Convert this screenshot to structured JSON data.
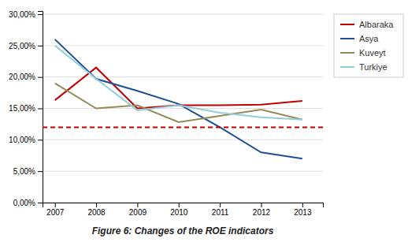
{
  "chart_data": {
    "type": "line",
    "title": "Figure 6: Changes of the ROE indicators",
    "x": [
      2007,
      2008,
      2009,
      2010,
      2011,
      2012,
      2013
    ],
    "series": [
      {
        "name": "Albaraka",
        "color": "#c00000",
        "values": [
          0.163,
          0.215,
          0.15,
          0.155,
          0.155,
          0.156,
          0.162
        ]
      },
      {
        "name": "Asya",
        "color": "#1f5096",
        "values": [
          0.26,
          0.197,
          0.178,
          0.157,
          0.12,
          0.08,
          0.07
        ]
      },
      {
        "name": "Kuveyt",
        "color": "#948a54",
        "values": [
          0.19,
          0.15,
          0.155,
          0.128,
          0.138,
          0.148,
          0.132
        ]
      },
      {
        "name": "Turkiye",
        "color": "#92cddc",
        "values": [
          0.25,
          0.197,
          0.147,
          0.155,
          0.143,
          0.136,
          0.132
        ]
      }
    ],
    "hline": {
      "value": 0.12,
      "color": "#c00000",
      "line_style": "dashed"
    },
    "xlim": [
      2006.7,
      2013.5
    ],
    "xticks": [
      2007,
      2008,
      2009,
      2010,
      2011,
      2012,
      2013
    ],
    "ylim": [
      0.0,
      0.305
    ],
    "yticks": [
      {
        "value": 0.0,
        "label": "0,00%"
      },
      {
        "value": 0.05,
        "label": "5,00%"
      },
      {
        "value": 0.1,
        "label": "10,00%"
      },
      {
        "value": 0.15,
        "label": "15,00%"
      },
      {
        "value": 0.2,
        "label": "20,00%"
      },
      {
        "value": 0.25,
        "label": "25,00%"
      },
      {
        "value": 0.3,
        "label": "30,00%"
      }
    ],
    "grid": true,
    "legend": "right"
  }
}
